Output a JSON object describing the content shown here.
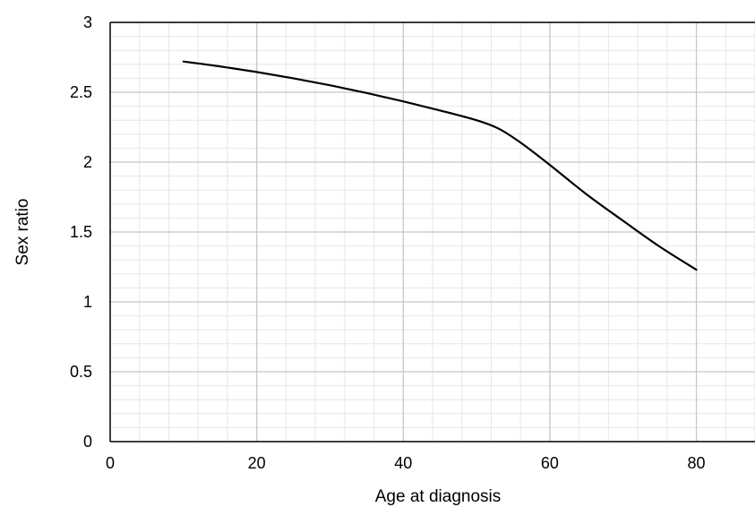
{
  "chart_data": {
    "type": "line",
    "title": "",
    "xlabel": "Age at diagnosis",
    "ylabel": "Sex ratio",
    "xlim": [
      0,
      88
    ],
    "ylim": [
      0,
      3
    ],
    "x_ticks": [
      0,
      20,
      40,
      60,
      80
    ],
    "y_ticks": [
      0,
      0.5,
      1,
      1.5,
      2,
      2.5,
      3
    ],
    "x_tick_labels": [
      "0",
      "20",
      "40",
      "60",
      "80"
    ],
    "y_tick_labels": [
      "0",
      "0.5",
      "1",
      "1.5",
      "2",
      "2.5",
      "3"
    ],
    "x_minor_step": 4,
    "y_minor_step": 0.1,
    "grid": true,
    "legend": "none",
    "series": [
      {
        "x": [
          10,
          15,
          20,
          25,
          30,
          35,
          40,
          45,
          50,
          53,
          56,
          60,
          65,
          70,
          75,
          80
        ],
        "y": [
          2.72,
          2.685,
          2.645,
          2.6,
          2.55,
          2.495,
          2.435,
          2.37,
          2.3,
          2.24,
          2.14,
          1.98,
          1.77,
          1.58,
          1.395,
          1.23
        ],
        "color": "#000000"
      }
    ]
  }
}
